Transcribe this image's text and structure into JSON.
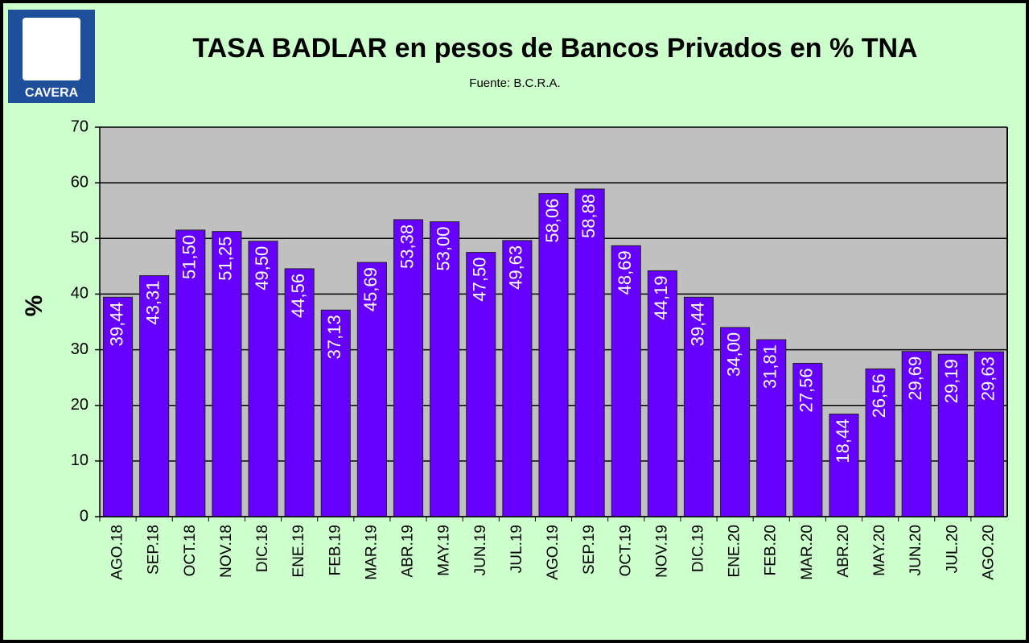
{
  "logo": "CAVERA",
  "chart_data": {
    "type": "bar",
    "title": "TASA BADLAR en pesos de Bancos Privados en % TNA",
    "subtitle": "Fuente:  B.C.R.A.",
    "y_label": "%",
    "categories": [
      "AGO.18",
      "SEP.18",
      "OCT.18",
      "NOV.18",
      "DIC.18",
      "ENE.19",
      "FEB.19",
      "MAR.19",
      "ABR.19",
      "MAY.19",
      "JUN.19",
      "JUL.19",
      "AGO.19",
      "SEP.19",
      "OCT.19",
      "NOV.19",
      "DIC.19",
      "ENE.20",
      "FEB.20",
      "MAR.20",
      "ABR.20",
      "MAY.20",
      "JUN.20",
      "JUL.20",
      "AGO.20"
    ],
    "values": [
      39.44,
      43.31,
      51.5,
      51.25,
      49.5,
      44.56,
      37.13,
      45.69,
      53.38,
      53.0,
      47.5,
      49.63,
      58.06,
      58.88,
      48.69,
      44.19,
      39.44,
      34.0,
      31.81,
      27.56,
      18.44,
      26.56,
      29.69,
      29.19,
      29.63
    ],
    "value_labels": [
      "39,44",
      "43,31",
      "51,50",
      "51,25",
      "49,50",
      "44,56",
      "37,13",
      "45,69",
      "53,38",
      "53,00",
      "47,50",
      "49,63",
      "58,06",
      "58,88",
      "48,69",
      "44,19",
      "39,44",
      "34,00",
      "31,81",
      "27,56",
      "18,44",
      "26,56",
      "29,69",
      "29,19",
      "29,63"
    ],
    "color": "#6600ff",
    "ylim": [
      0,
      70
    ],
    "yticks": [
      0,
      10,
      20,
      30,
      40,
      50,
      60,
      70
    ],
    "grid": true
  }
}
